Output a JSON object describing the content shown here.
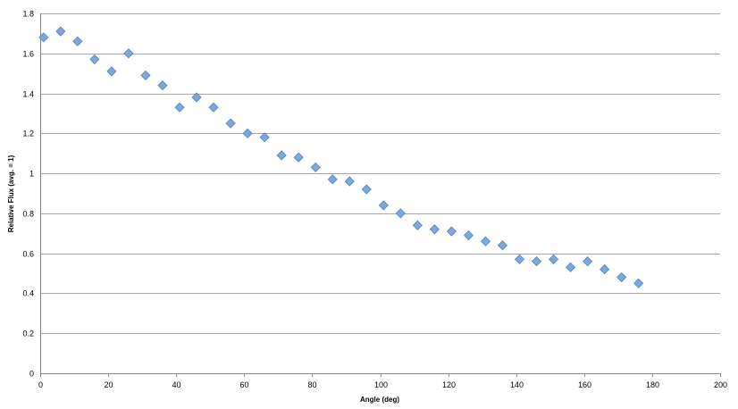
{
  "chart_data": {
    "type": "scatter",
    "title": "",
    "xlabel": "Angle (deg)",
    "ylabel": "Relative Flux (avg. = 1)",
    "xlim": [
      0,
      200
    ],
    "ylim": [
      0,
      1.8
    ],
    "xticks": [
      0,
      20,
      40,
      60,
      80,
      100,
      120,
      140,
      160,
      180,
      200
    ],
    "yticks": [
      0,
      0.2,
      0.4,
      0.6,
      0.8,
      1,
      1.2,
      1.4,
      1.6,
      1.8
    ],
    "grid": true,
    "marker": "diamond",
    "marker_color": "#7FA7DB",
    "marker_edge_color": "#4F81BD",
    "series": [
      {
        "x": [
          1,
          6,
          11,
          16,
          21,
          26,
          31,
          36,
          41,
          46,
          51,
          56,
          61,
          66,
          71,
          76,
          81,
          86,
          91,
          96,
          101,
          106,
          111,
          116,
          121,
          126,
          131,
          136,
          141,
          146,
          151,
          156,
          161,
          166,
          171,
          176
        ],
        "y": [
          1.68,
          1.71,
          1.66,
          1.57,
          1.51,
          1.6,
          1.49,
          1.44,
          1.33,
          1.38,
          1.33,
          1.25,
          1.2,
          1.18,
          1.09,
          1.08,
          1.03,
          0.97,
          0.96,
          0.92,
          0.84,
          0.8,
          0.74,
          0.72,
          0.71,
          0.69,
          0.66,
          0.64,
          0.57,
          0.56,
          0.57,
          0.53,
          0.56,
          0.52,
          0.48,
          0.45
        ]
      }
    ]
  }
}
